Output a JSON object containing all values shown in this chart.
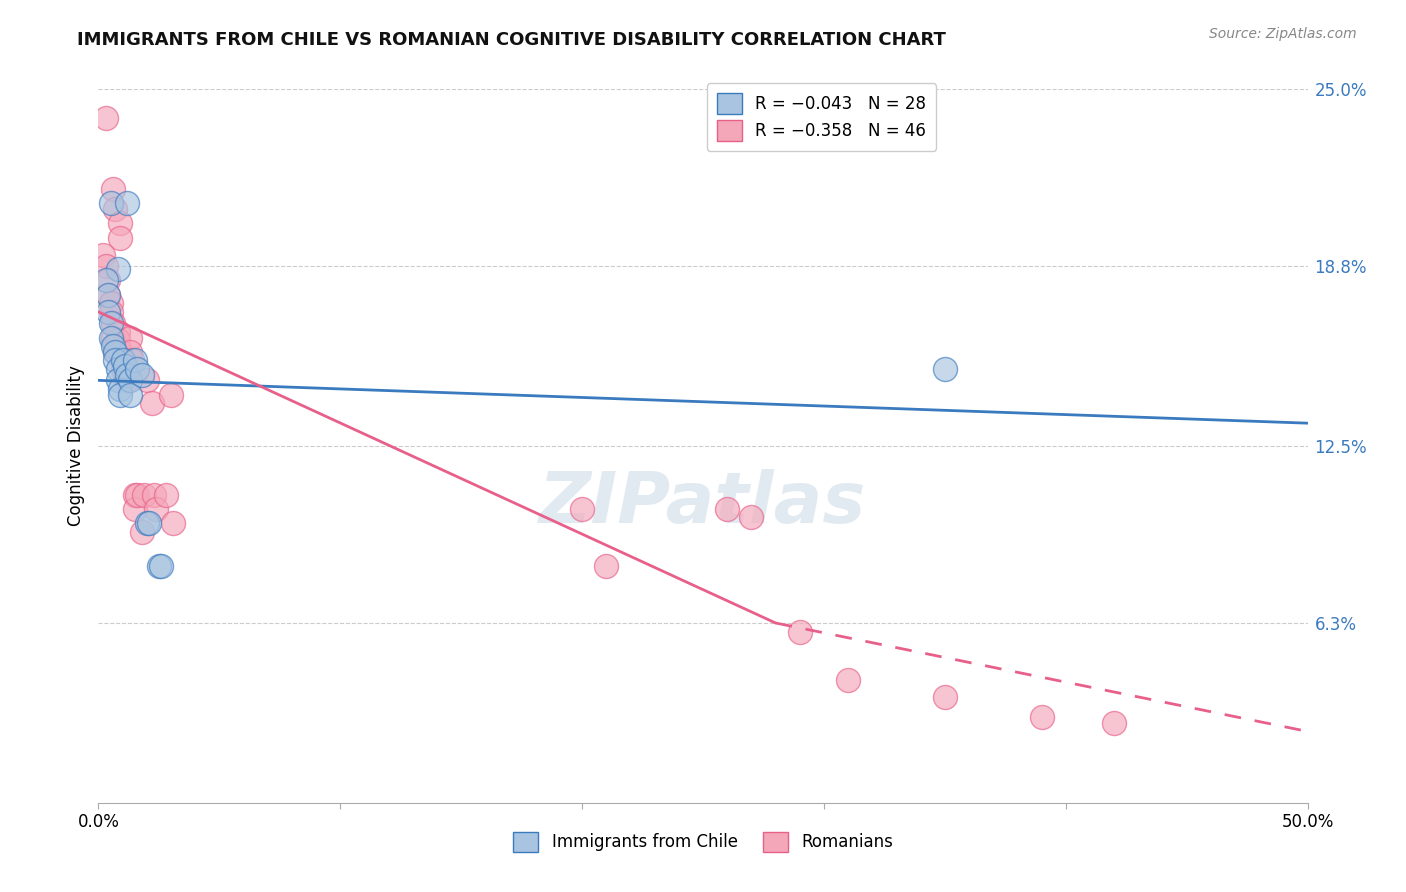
{
  "title": "IMMIGRANTS FROM CHILE VS ROMANIAN COGNITIVE DISABILITY CORRELATION CHART",
  "source": "Source: ZipAtlas.com",
  "ylabel": "Cognitive Disability",
  "xlim": [
    0.0,
    0.5
  ],
  "ylim": [
    0.0,
    0.25
  ],
  "chile_color": "#a8c4e0",
  "romania_color": "#f4a7b9",
  "chile_line_color": "#3a7abf",
  "romania_line_color": "#e8608a",
  "watermark": "ZIPatlas",
  "chile_points": [
    [
      0.005,
      0.21
    ],
    [
      0.012,
      0.21
    ],
    [
      0.008,
      0.187
    ],
    [
      0.003,
      0.183
    ],
    [
      0.004,
      0.178
    ],
    [
      0.004,
      0.172
    ],
    [
      0.005,
      0.168
    ],
    [
      0.005,
      0.163
    ],
    [
      0.006,
      0.16
    ],
    [
      0.007,
      0.158
    ],
    [
      0.007,
      0.155
    ],
    [
      0.008,
      0.152
    ],
    [
      0.008,
      0.148
    ],
    [
      0.009,
      0.145
    ],
    [
      0.009,
      0.143
    ],
    [
      0.01,
      0.155
    ],
    [
      0.011,
      0.153
    ],
    [
      0.012,
      0.15
    ],
    [
      0.013,
      0.148
    ],
    [
      0.013,
      0.143
    ],
    [
      0.015,
      0.155
    ],
    [
      0.016,
      0.152
    ],
    [
      0.018,
      0.15
    ],
    [
      0.02,
      0.098
    ],
    [
      0.021,
      0.098
    ],
    [
      0.025,
      0.083
    ],
    [
      0.026,
      0.083
    ],
    [
      0.35,
      0.152
    ]
  ],
  "romania_points": [
    [
      0.003,
      0.24
    ],
    [
      0.006,
      0.215
    ],
    [
      0.007,
      0.208
    ],
    [
      0.009,
      0.203
    ],
    [
      0.009,
      0.198
    ],
    [
      0.002,
      0.192
    ],
    [
      0.003,
      0.188
    ],
    [
      0.004,
      0.183
    ],
    [
      0.004,
      0.178
    ],
    [
      0.005,
      0.175
    ],
    [
      0.005,
      0.172
    ],
    [
      0.006,
      0.168
    ],
    [
      0.006,
      0.163
    ],
    [
      0.007,
      0.16
    ],
    [
      0.007,
      0.158
    ],
    [
      0.008,
      0.165
    ],
    [
      0.008,
      0.162
    ],
    [
      0.009,
      0.158
    ],
    [
      0.01,
      0.155
    ],
    [
      0.01,
      0.152
    ],
    [
      0.011,
      0.15
    ],
    [
      0.012,
      0.148
    ],
    [
      0.013,
      0.163
    ],
    [
      0.013,
      0.158
    ],
    [
      0.014,
      0.155
    ],
    [
      0.015,
      0.108
    ],
    [
      0.015,
      0.103
    ],
    [
      0.016,
      0.108
    ],
    [
      0.018,
      0.095
    ],
    [
      0.019,
      0.108
    ],
    [
      0.02,
      0.148
    ],
    [
      0.022,
      0.14
    ],
    [
      0.023,
      0.108
    ],
    [
      0.024,
      0.103
    ],
    [
      0.028,
      0.108
    ],
    [
      0.03,
      0.143
    ],
    [
      0.031,
      0.098
    ],
    [
      0.2,
      0.103
    ],
    [
      0.21,
      0.083
    ],
    [
      0.26,
      0.103
    ],
    [
      0.27,
      0.1
    ],
    [
      0.29,
      0.06
    ],
    [
      0.31,
      0.043
    ],
    [
      0.35,
      0.037
    ],
    [
      0.39,
      0.03
    ],
    [
      0.42,
      0.028
    ]
  ],
  "chile_line": [
    0.0,
    0.5,
    0.148,
    0.133
  ],
  "romania_line_solid": [
    0.0,
    0.28,
    0.172,
    0.063
  ],
  "romania_line_dash": [
    0.28,
    0.5,
    0.063,
    0.025
  ]
}
